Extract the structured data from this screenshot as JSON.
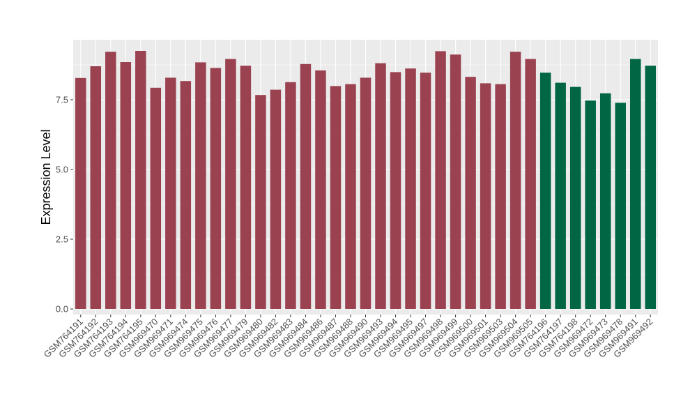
{
  "chart_data": {
    "type": "bar",
    "xlabel": "",
    "ylabel": "Expression Level",
    "ylim": [
      -0.2,
      9.65
    ],
    "yticks": [
      0.0,
      2.5,
      5.0,
      7.5
    ],
    "ytick_labels": [
      "0.0",
      "2.5",
      "5.0",
      "7.5"
    ],
    "grid": true,
    "panel_background": "#ebebeb",
    "grid_color": "#ffffff",
    "legend": "none",
    "categories": [
      "GSM764191",
      "GSM764192",
      "GSM764193",
      "GSM764194",
      "GSM764195",
      "GSM969470",
      "GSM969471",
      "GSM969474",
      "GSM969475",
      "GSM969476",
      "GSM969477",
      "GSM969479",
      "GSM969480",
      "GSM969482",
      "GSM969483",
      "GSM969484",
      "GSM969486",
      "GSM969487",
      "GSM969488",
      "GSM969490",
      "GSM969493",
      "GSM969494",
      "GSM969495",
      "GSM969497",
      "GSM969498",
      "GSM969499",
      "GSM969500",
      "GSM969501",
      "GSM969503",
      "GSM969504",
      "GSM969505",
      "GSM764196",
      "GSM764197",
      "GSM764198",
      "GSM969472",
      "GSM969473",
      "GSM969478",
      "GSM969491",
      "GSM969492"
    ],
    "values": [
      8.28,
      8.7,
      9.22,
      8.85,
      9.25,
      7.93,
      8.29,
      8.17,
      8.84,
      8.64,
      8.96,
      8.72,
      7.67,
      7.86,
      8.13,
      8.78,
      8.55,
      7.99,
      8.06,
      8.29,
      8.81,
      8.49,
      8.62,
      8.47,
      9.24,
      9.12,
      8.32,
      8.09,
      8.06,
      9.22,
      8.96,
      8.47,
      8.11,
      7.96,
      7.47,
      7.73,
      7.39,
      8.96,
      8.72
    ],
    "groups": [
      0,
      0,
      0,
      0,
      0,
      0,
      0,
      0,
      0,
      0,
      0,
      0,
      0,
      0,
      0,
      0,
      0,
      0,
      0,
      0,
      0,
      0,
      0,
      0,
      0,
      0,
      0,
      0,
      0,
      0,
      0,
      1,
      1,
      1,
      1,
      1,
      1,
      1,
      1
    ],
    "group_colors": [
      "#9b4250",
      "#006643"
    ]
  }
}
